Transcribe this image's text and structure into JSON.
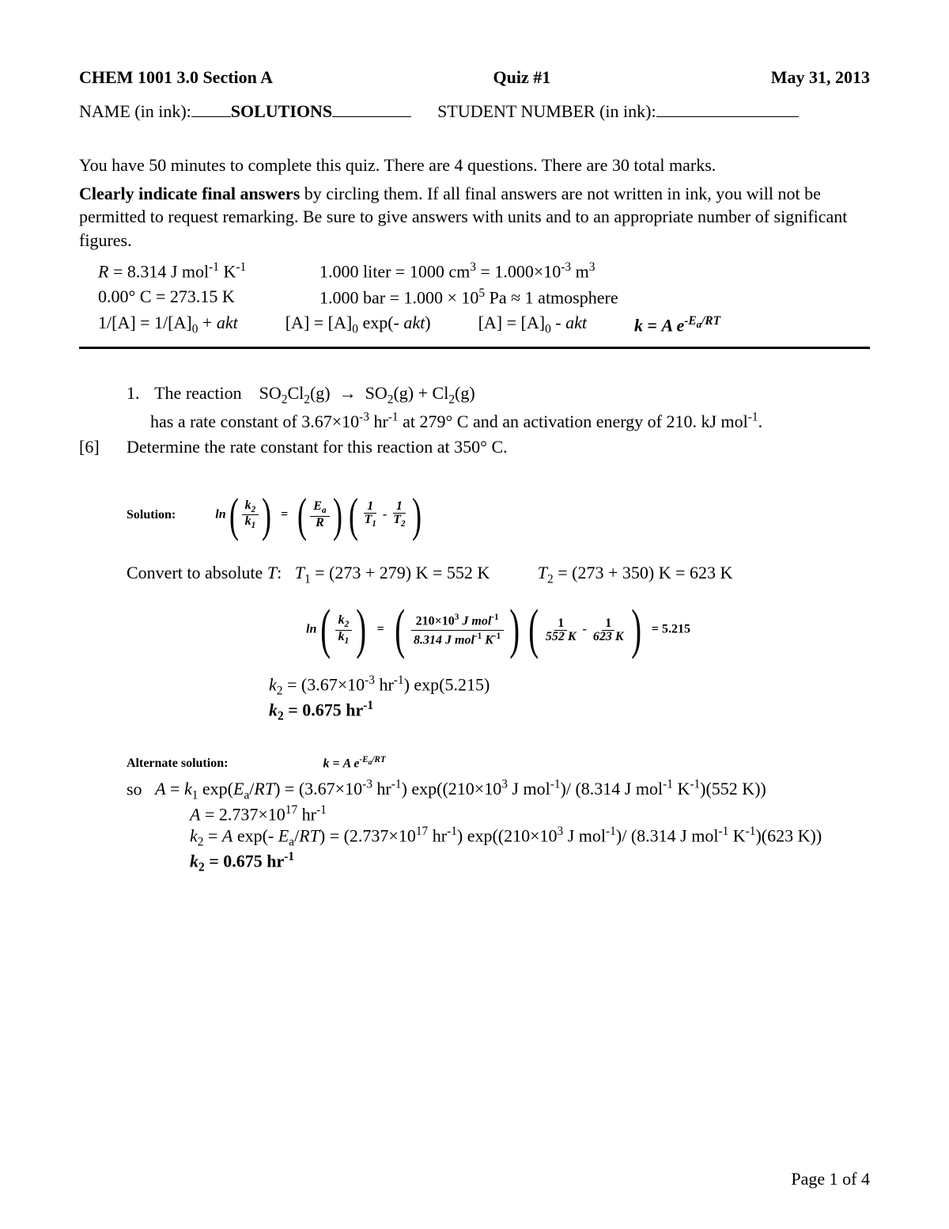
{
  "header": {
    "left": "CHEM 1001 3.0 Section A",
    "center": "Quiz #1",
    "right": "May 31, 2013"
  },
  "nameline": {
    "name_label": "NAME (in ink):",
    "name_value": "SOLUTIONS",
    "student_label": "STUDENT NUMBER (in ink):"
  },
  "intro": {
    "line1": "You have 50 minutes to complete this quiz. There are 4 questions. There are 30 total marks.",
    "line2a": "Clearly indicate final answers ",
    "line2b": "by circling them. If all final answers are not written in ink, you will not be permitted to request remarking. Be sure to give answers with units and to an appropriate number of significant figures."
  },
  "constants": {
    "r1c1_html": "<span class='it'>R</span> = 8.314 J mol<span class='sup'>-1</span> K<span class='sup'>-1</span>",
    "r1c2_html": "1.000 liter = 1000 cm<span class='sup'>3</span> = 1.000×10<span class='sup'>-3</span> m<span class='sup'>3</span>",
    "r2c1_html": "0.00° C = 273.15 K",
    "r2c2_html": "1.000 bar = 1.000 × 10<span class='sup'>5</span> Pa ≈ 1 atmosphere"
  },
  "eqrow": {
    "e1_html": "1/[A] = 1/[A]<span class='sub'>0</span> + <span class='it'>akt</span>",
    "e2_html": "[A] = [A]<span class='sub'>0</span> exp(- <span class='it'>akt</span>)",
    "e3_html": "[A] = [A]<span class='sub'>0</span> - <span class='it'>akt</span>",
    "e4_html": "<span class='bi'>k</span> = <span class='bi'>A e</span><span class='sup bi'>-E<sub>a</sub>/RT</span>"
  },
  "question1": {
    "number": "1.",
    "line1_html": "The reaction&nbsp;&nbsp;&nbsp;&nbsp;SO<span class='sub'>2</span>Cl<span class='sub'>2</span>(g)&nbsp;&nbsp;→&nbsp;&nbsp;SO<span class='sub'>2</span>(g)&nbsp;+&nbsp;Cl<span class='sub'>2</span>(g)",
    "line2_html": "has a rate constant of 3.67×10<span class='sup'>-3</span> hr<span class='sup'>-1</span> at 279° C and an activation energy of 210. kJ mol<span class='sup'>-1</span>.",
    "marks": "[6]",
    "line3": "Determine the rate constant for this reaction at 350° C."
  },
  "solution": {
    "label": "Solution:",
    "arrhenius_ln": {
      "ln": "ln",
      "k2": "k",
      "k2sub": "2",
      "k1": "k",
      "k1sub": "1",
      "Ea_num": "E",
      "Ea_sub": "a",
      "R": "R",
      "one": "1",
      "T1": "T",
      "T1sub": "1",
      "T2": "T",
      "T2sub": "2"
    },
    "convert_label": "Convert to absolute ",
    "convert_T": "T",
    "T1_calc_html": "<span class='it'>T</span><span class='sub'>1</span> = (273 + 279) K = 552 K",
    "T2_calc_html": "<span class='it'>T</span><span class='sub'>2</span> = (273 + 350) K = 623 K",
    "numeric": {
      "Ea_val": "210×10",
      "Ea_exp": "3",
      "Ea_units": " J mol",
      "Ea_units_exp": "-1",
      "R_val": "8.314 J mol",
      "R_exp1": "-1",
      "R_K": " K",
      "R_exp2": "-1",
      "T1v": "552 K",
      "T2v": "623 K",
      "result": "5.215"
    },
    "k2_line1_html": "<span class='it'>k</span><span class='sub'>2</span> = (3.67×10<span class='sup'>-3</span> hr<span class='sup'>-1</span>) exp(5.215)",
    "k2_line2_html": "<span class='bi'>k</span><span class='sub'><b>2</b></span><b> = 0.675 hr</b><span class='sup'><b>-1</b></span>"
  },
  "alternate": {
    "label": "Alternate solution:",
    "formula_html": "<span class='bi'>k</span> = <span class='bi'>A e</span><span class='sup bi'>-E<sub>a</sub>/RT</span>",
    "so": "so",
    "line1_html": "<span class='it'>A</span> = <span class='it'>k</span><span class='sub'>1</span> exp(<span class='it'>E</span><span class='sub'>a</span>/<span class='it'>RT</span>) = (3.67×10<span class='sup'>-3</span> hr<span class='sup'>-1</span>) exp((210×10<span class='sup'>3</span> J mol<span class='sup'>-1</span>)/ (8.314 J mol<span class='sup'>-1</span> K<span class='sup'>-1</span>)(552 K))",
    "line2_html": "<span class='it'>A</span> = 2.737×10<span class='sup'>17</span> hr<span class='sup'>-1</span>",
    "line3_html": "<span class='it'>k</span><span class='sub'>2</span> = <span class='it'>A</span> exp(- <span class='it'>E</span><span class='sub'>a</span>/<span class='it'>RT</span>) = (2.737×10<span class='sup'>17</span> hr<span class='sup'>-1</span>) exp((210×10<span class='sup'>3</span> J mol<span class='sup'>-1</span>)/ (8.314 J mol<span class='sup'>-1</span> K<span class='sup'>-1</span>)(623 K))",
    "line4_html": "<span class='bi'>k</span><span class='sub'><b>2</b></span><b> = 0.675 hr</b><span class='sup'><b>-1</b></span>"
  },
  "footer": {
    "text": "Page 1 of 4"
  }
}
